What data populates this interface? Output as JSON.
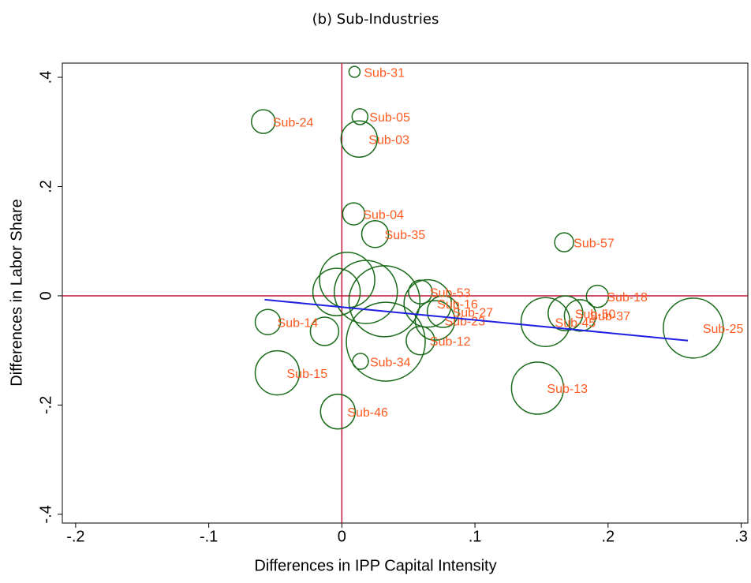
{
  "chart_data": {
    "type": "bubble",
    "title": "(b) Sub-Industries",
    "x_label": "Differences in IPP Capital Intensity",
    "y_label": "Differences in Labor Share",
    "xlim": [
      -0.21,
      0.305
    ],
    "ylim": [
      -0.416,
      0.426
    ],
    "xticks": [
      {
        "value": -0.2,
        "label": "-.2"
      },
      {
        "value": -0.1,
        "label": "-.1"
      },
      0,
      {
        "value": 0.1,
        "label": ".1"
      },
      {
        "value": 0.2,
        "label": ".2"
      },
      {
        "value": 0.3,
        "label": ".3"
      }
    ],
    "yticks": [
      {
        "value": -0.4,
        "label": "-.4"
      },
      {
        "value": -0.2,
        "label": "-.2"
      },
      0,
      {
        "value": 0.2,
        "label": ".2"
      },
      {
        "value": 0.4,
        "label": ".4"
      }
    ],
    "marker_color": "#1a6b1a",
    "label_color": "#ff5a1f",
    "reference_lines": {
      "x": 0,
      "y": 0,
      "color": "#c0163c"
    },
    "fit_line": {
      "x": [
        -0.058,
        0.26
      ],
      "y": [
        -0.007,
        -0.082
      ],
      "color": "#1f1fe0"
    },
    "points": {
      "labels": [
        "Sub-31",
        "Sub-05",
        "Sub-24",
        "Sub-03",
        "Sub-04",
        "Sub-35",
        "Sub-57",
        "Sub-53",
        "Sub-16",
        "Sub-18",
        "Sub-37",
        "Sub-50",
        "Sub-45",
        "Sub-25",
        "Sub-14",
        "Sub-15",
        "Sub-46",
        "Sub-13",
        "Sub-12",
        "Sub-23",
        "Sub-27",
        "Sub-34",
        null,
        null,
        null,
        null,
        null,
        null
      ],
      "x": [
        0.0095,
        0.0136,
        -0.059,
        0.013,
        0.0089,
        0.025,
        0.167,
        0.059,
        0.0645,
        0.192,
        0.179,
        0.168,
        0.153,
        0.264,
        -0.0556,
        -0.0485,
        -0.003,
        0.147,
        0.059,
        0.07,
        0.076,
        0.014,
        0.004,
        0.018,
        0.032,
        0.033,
        -0.013,
        -0.004
      ],
      "y": [
        0.41,
        0.328,
        0.319,
        0.287,
        0.15,
        0.113,
        0.098,
        0.007,
        -0.014,
        -0.001,
        -0.036,
        -0.032,
        -0.048,
        -0.059,
        -0.048,
        -0.141,
        -0.212,
        -0.169,
        -0.082,
        -0.045,
        -0.029,
        -0.12,
        0.029,
        0.007,
        -0.01,
        -0.084,
        -0.065,
        0.007
      ],
      "sizes": [
        7,
        10,
        15,
        23,
        14,
        17,
        12,
        15,
        30,
        14,
        20,
        22,
        31,
        38,
        16,
        28,
        22,
        33,
        18,
        25,
        20,
        10,
        35,
        40,
        45,
        50,
        18,
        30
      ]
    }
  }
}
